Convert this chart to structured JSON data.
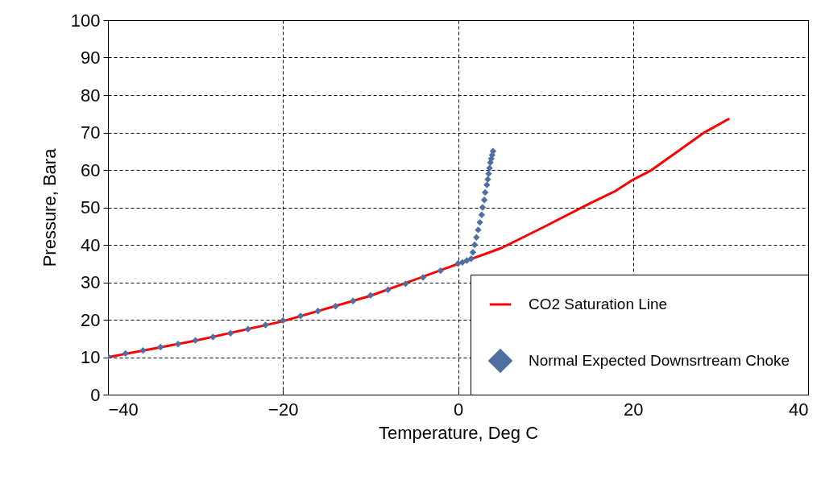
{
  "chart_data": {
    "type": "line",
    "xlabel": "Temperature, Deg C",
    "ylabel": "Pressure, Bara",
    "xlim": [
      -40,
      40
    ],
    "xticks": [
      -40,
      -20,
      0,
      20,
      40
    ],
    "ylim": [
      0,
      100
    ],
    "yticks": [
      0,
      10,
      20,
      30,
      40,
      50,
      60,
      70,
      80,
      90,
      100
    ],
    "grid": true,
    "legend": "bottom right",
    "series": [
      {
        "name": "CO2 Saturation Line",
        "type": "line",
        "color": "#ff0000",
        "line_style": "solid",
        "marker": "none",
        "x": [
          -40,
          -30,
          -20,
          -10,
          0,
          5,
          10,
          15,
          18,
          20,
          22,
          25,
          28,
          31
        ],
        "values": [
          10,
          14.4,
          19.6,
          26.4,
          34.9,
          39.2,
          45,
          51,
          54.4,
          57.4,
          59.8,
          64.8,
          69.8,
          73.7
        ]
      },
      {
        "name": "Normal Expected Downsrtream Choke",
        "type": "scatter",
        "color": "#4f6fa0",
        "marker": "diamond",
        "x": [
          -40,
          -38,
          -36,
          -34,
          -32,
          -30,
          -28,
          -26,
          -24,
          -22,
          -20,
          -18,
          -16,
          -14,
          -12,
          -10,
          -8,
          -6,
          -4,
          -2,
          0,
          0.5,
          1,
          1.5,
          1.7,
          1.9,
          2.1,
          2.3,
          2.5,
          2.7,
          2.8,
          3,
          3.1,
          3.3,
          3.4,
          3.5,
          3.6,
          3.7,
          3.8,
          3.9,
          4
        ],
        "values": [
          10.2,
          11,
          11.8,
          12.7,
          13.5,
          14.5,
          15.4,
          16.4,
          17.5,
          18.6,
          19.8,
          21,
          22.3,
          23.6,
          25,
          26.5,
          28,
          29.6,
          31.3,
          33.1,
          35,
          35.3,
          35.8,
          36.3,
          38,
          40,
          42,
          44,
          46,
          48,
          50,
          52,
          54,
          56,
          57.5,
          59,
          60.5,
          62,
          63,
          64,
          65
        ]
      }
    ]
  }
}
